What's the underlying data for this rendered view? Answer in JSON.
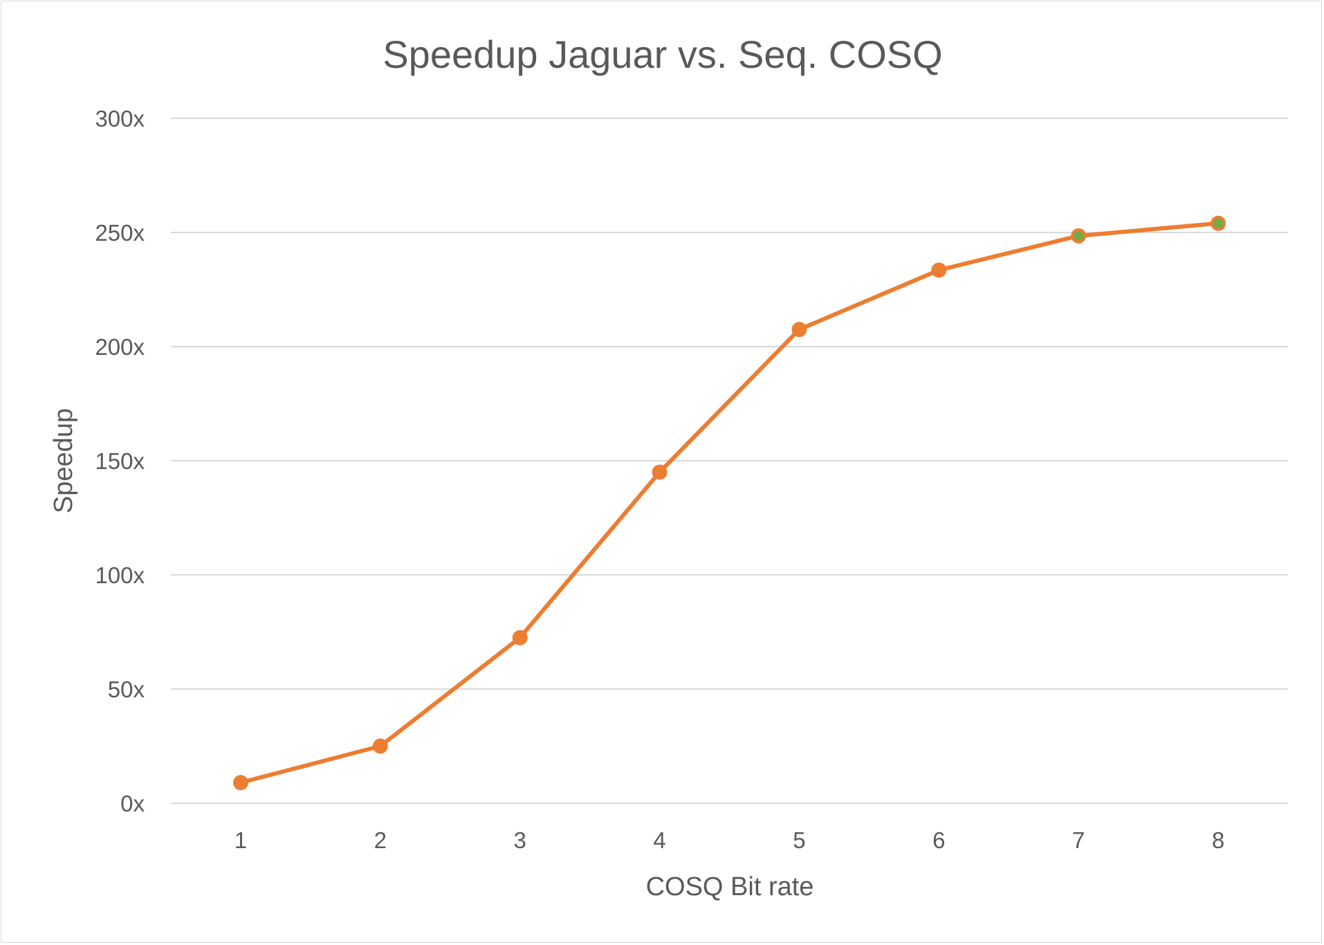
{
  "chart_data": {
    "type": "line",
    "title": "Speedup Jaguar vs. Seq. COSQ",
    "xlabel": "COSQ Bit rate",
    "ylabel": "Speedup",
    "categories": [
      "1",
      "2",
      "3",
      "4",
      "5",
      "6",
      "7",
      "8"
    ],
    "series": [
      {
        "values": [
          9,
          25,
          72.5,
          145,
          207.5,
          233.5,
          248.5,
          254
        ],
        "color": "#ed7d31"
      }
    ],
    "highlight_markers": [
      {
        "category": "7",
        "color": "#70ad47"
      },
      {
        "category": "8",
        "color": "#70ad47"
      }
    ],
    "ylim": [
      0,
      300
    ],
    "y_ticks": [
      0,
      50,
      100,
      150,
      200,
      250,
      300
    ],
    "y_tick_labels": [
      "0x",
      "50x",
      "100x",
      "150x",
      "200x",
      "250x",
      "300x"
    ],
    "grid": true,
    "legend": "none",
    "colors": {
      "gridline": "#d9d9d9",
      "text": "#595959",
      "line": "#ed7d31",
      "marker_center": "#70ad47"
    }
  }
}
